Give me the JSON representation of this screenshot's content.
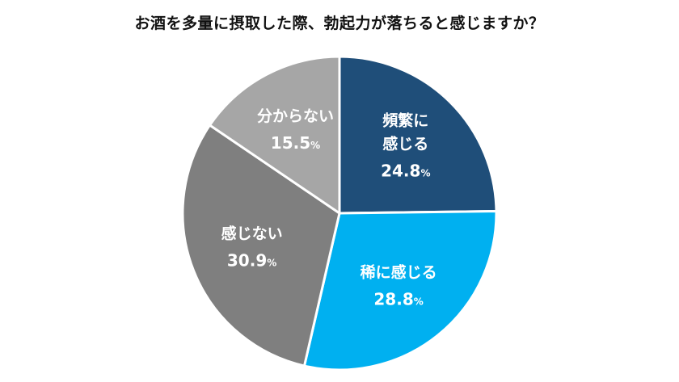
{
  "chart_data": {
    "type": "pie",
    "title": "お酒を多量に摂取した際、勃起力が落ちると感じますか？",
    "unit": "%",
    "slices": [
      {
        "label_lines": [
          "頻繁に",
          "感じる"
        ],
        "value": 24.8,
        "color": "#1f4e79"
      },
      {
        "label_lines": [
          "稀に感じる"
        ],
        "value": 28.8,
        "color": "#00b0f0"
      },
      {
        "label_lines": [
          "感じない"
        ],
        "value": 30.9,
        "color": "#7f7f7f"
      },
      {
        "label_lines": [
          "分からない"
        ],
        "value": 15.5,
        "color": "#a6a6a6"
      }
    ],
    "start": "12 o'clock",
    "direction": "clockwise",
    "legend": "none"
  }
}
